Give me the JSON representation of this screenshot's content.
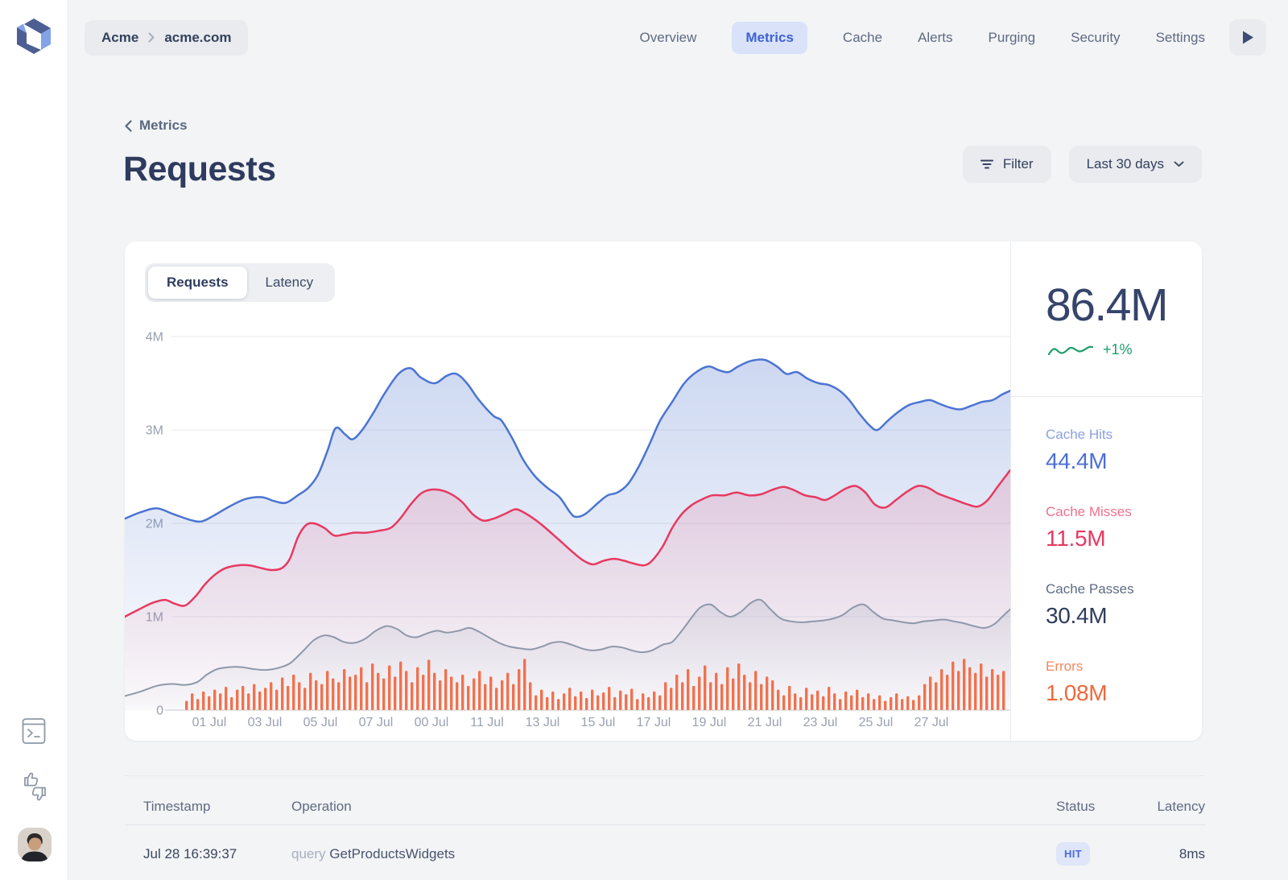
{
  "header": {
    "breadcrumb": {
      "org": "Acme",
      "site": "acme.com"
    },
    "nav_items": [
      "Overview",
      "Metrics",
      "Cache",
      "Alerts",
      "Purging",
      "Security",
      "Settings"
    ],
    "active_nav": "Metrics"
  },
  "page": {
    "back_label": "Metrics",
    "title": "Requests",
    "filter_label": "Filter",
    "range_label": "Last 30 days"
  },
  "tabs": [
    {
      "label": "Requests",
      "active": true
    },
    {
      "label": "Latency",
      "active": false
    }
  ],
  "summary": {
    "total": "86.4M",
    "trend": "+1%",
    "trend_color": "#1d9e68"
  },
  "stats": [
    {
      "label": "Cache Hits",
      "value": "44.4M",
      "label_color": "#8ba0de",
      "value_color": "#4d6fd4"
    },
    {
      "label": "Cache Misses",
      "value": "11.5M",
      "label_color": "#f0718d",
      "value_color": "#e73960"
    },
    {
      "label": "Cache Passes",
      "value": "30.4M",
      "label_color": "#5d6b85",
      "value_color": "#2f3d5e"
    },
    {
      "label": "Errors",
      "value": "1.08M",
      "label_color": "#f2875f",
      "value_color": "#ee6a3d"
    }
  ],
  "chart_data": {
    "type": "area-line+bar",
    "title": "Requests over last 30 days",
    "grid": true,
    "y_unit": "M requests",
    "y_ticks": [
      {
        "label": "4M",
        "value": 4
      },
      {
        "label": "3M",
        "value": 3
      },
      {
        "label": "2M",
        "value": 2
      },
      {
        "label": "1M",
        "value": 1
      },
      {
        "label": "0",
        "value": 0
      }
    ],
    "ylim": [
      0,
      4
    ],
    "x_labels": [
      "01 Jul",
      "03 Jul",
      "05 Jul",
      "07 Jul",
      "00 Jul",
      "11 Jul",
      "13 Jul",
      "15 Jul",
      "17 Jul",
      "19 Jul",
      "21 Jul",
      "23 Jul",
      "25 Jul",
      "27 Jul"
    ],
    "series": [
      {
        "name": "Cache Hits",
        "color": "#4b74d2",
        "fill_from": "rgba(90,126,208,0.30)",
        "fill_to": "rgba(90,126,208,0.02)",
        "points": [
          [
            0,
            2.05
          ],
          [
            20,
            2.12
          ],
          [
            40,
            2.16
          ],
          [
            60,
            2.1
          ],
          [
            80,
            2.04
          ],
          [
            95,
            2.02
          ],
          [
            110,
            2.08
          ],
          [
            130,
            2.18
          ],
          [
            150,
            2.26
          ],
          [
            170,
            2.28
          ],
          [
            185,
            2.24
          ],
          [
            200,
            2.22
          ],
          [
            215,
            2.3
          ],
          [
            228,
            2.38
          ],
          [
            240,
            2.52
          ],
          [
            252,
            2.78
          ],
          [
            262,
            3.02
          ],
          [
            274,
            2.95
          ],
          [
            283,
            2.9
          ],
          [
            295,
            3.0
          ],
          [
            310,
            3.2
          ],
          [
            322,
            3.38
          ],
          [
            340,
            3.6
          ],
          [
            355,
            3.66
          ],
          [
            368,
            3.56
          ],
          [
            385,
            3.5
          ],
          [
            400,
            3.58
          ],
          [
            412,
            3.6
          ],
          [
            425,
            3.5
          ],
          [
            440,
            3.32
          ],
          [
            458,
            3.15
          ],
          [
            468,
            3.1
          ],
          [
            482,
            2.9
          ],
          [
            495,
            2.68
          ],
          [
            510,
            2.5
          ],
          [
            525,
            2.38
          ],
          [
            540,
            2.28
          ],
          [
            553,
            2.12
          ],
          [
            560,
            2.07
          ],
          [
            572,
            2.1
          ],
          [
            588,
            2.22
          ],
          [
            600,
            2.3
          ],
          [
            612,
            2.33
          ],
          [
            625,
            2.42
          ],
          [
            638,
            2.6
          ],
          [
            652,
            2.85
          ],
          [
            665,
            3.1
          ],
          [
            680,
            3.3
          ],
          [
            695,
            3.5
          ],
          [
            710,
            3.62
          ],
          [
            725,
            3.68
          ],
          [
            738,
            3.64
          ],
          [
            750,
            3.62
          ],
          [
            762,
            3.68
          ],
          [
            778,
            3.74
          ],
          [
            795,
            3.75
          ],
          [
            810,
            3.68
          ],
          [
            822,
            3.6
          ],
          [
            835,
            3.62
          ],
          [
            848,
            3.55
          ],
          [
            862,
            3.5
          ],
          [
            875,
            3.48
          ],
          [
            888,
            3.42
          ],
          [
            900,
            3.32
          ],
          [
            912,
            3.18
          ],
          [
            925,
            3.05
          ],
          [
            935,
            3.0
          ],
          [
            948,
            3.1
          ],
          [
            962,
            3.2
          ],
          [
            975,
            3.27
          ],
          [
            988,
            3.3
          ],
          [
            1000,
            3.32
          ],
          [
            1012,
            3.28
          ],
          [
            1025,
            3.24
          ],
          [
            1038,
            3.22
          ],
          [
            1052,
            3.26
          ],
          [
            1065,
            3.3
          ],
          [
            1078,
            3.32
          ],
          [
            1090,
            3.38
          ],
          [
            1100,
            3.42
          ]
        ]
      },
      {
        "name": "Cache Misses",
        "color": "#e73960",
        "fill_from": "rgba(232,57,95,0.16)",
        "fill_to": "rgba(232,57,95,0.01)",
        "points": [
          [
            0,
            1.0
          ],
          [
            18,
            1.08
          ],
          [
            35,
            1.15
          ],
          [
            50,
            1.18
          ],
          [
            62,
            1.14
          ],
          [
            75,
            1.12
          ],
          [
            88,
            1.22
          ],
          [
            100,
            1.35
          ],
          [
            112,
            1.45
          ],
          [
            125,
            1.52
          ],
          [
            140,
            1.55
          ],
          [
            155,
            1.55
          ],
          [
            170,
            1.52
          ],
          [
            182,
            1.5
          ],
          [
            195,
            1.52
          ],
          [
            205,
            1.62
          ],
          [
            215,
            1.85
          ],
          [
            225,
            1.98
          ],
          [
            235,
            2.0
          ],
          [
            248,
            1.95
          ],
          [
            260,
            1.87
          ],
          [
            272,
            1.88
          ],
          [
            285,
            1.9
          ],
          [
            300,
            1.9
          ],
          [
            315,
            1.92
          ],
          [
            330,
            1.95
          ],
          [
            342,
            2.05
          ],
          [
            355,
            2.2
          ],
          [
            368,
            2.32
          ],
          [
            380,
            2.36
          ],
          [
            395,
            2.35
          ],
          [
            408,
            2.3
          ],
          [
            420,
            2.22
          ],
          [
            432,
            2.1
          ],
          [
            445,
            2.03
          ],
          [
            458,
            2.05
          ],
          [
            472,
            2.1
          ],
          [
            485,
            2.15
          ],
          [
            495,
            2.12
          ],
          [
            508,
            2.05
          ],
          [
            520,
            1.97
          ],
          [
            532,
            1.88
          ],
          [
            545,
            1.78
          ],
          [
            558,
            1.68
          ],
          [
            570,
            1.6
          ],
          [
            582,
            1.56
          ],
          [
            595,
            1.6
          ],
          [
            608,
            1.62
          ],
          [
            620,
            1.6
          ],
          [
            632,
            1.57
          ],
          [
            645,
            1.55
          ],
          [
            655,
            1.6
          ],
          [
            668,
            1.75
          ],
          [
            680,
            1.95
          ],
          [
            692,
            2.1
          ],
          [
            705,
            2.2
          ],
          [
            718,
            2.26
          ],
          [
            730,
            2.3
          ],
          [
            745,
            2.3
          ],
          [
            760,
            2.33
          ],
          [
            775,
            2.3
          ],
          [
            790,
            2.31
          ],
          [
            805,
            2.36
          ],
          [
            818,
            2.39
          ],
          [
            830,
            2.36
          ],
          [
            845,
            2.3
          ],
          [
            858,
            2.28
          ],
          [
            870,
            2.25
          ],
          [
            882,
            2.3
          ],
          [
            895,
            2.37
          ],
          [
            908,
            2.4
          ],
          [
            920,
            2.33
          ],
          [
            932,
            2.2
          ],
          [
            945,
            2.17
          ],
          [
            958,
            2.25
          ],
          [
            972,
            2.34
          ],
          [
            985,
            2.4
          ],
          [
            998,
            2.38
          ],
          [
            1010,
            2.32
          ],
          [
            1022,
            2.28
          ],
          [
            1035,
            2.24
          ],
          [
            1048,
            2.2
          ],
          [
            1060,
            2.18
          ],
          [
            1072,
            2.25
          ],
          [
            1085,
            2.4
          ],
          [
            1100,
            2.57
          ]
        ]
      },
      {
        "name": "Cache Passes",
        "color": "#8e98aa",
        "fill_from": "rgba(142,153,173,0.18)",
        "fill_to": "rgba(142,153,173,0.02)",
        "points": [
          [
            0,
            0.15
          ],
          [
            20,
            0.2
          ],
          [
            40,
            0.26
          ],
          [
            58,
            0.28
          ],
          [
            75,
            0.27
          ],
          [
            90,
            0.3
          ],
          [
            102,
            0.38
          ],
          [
            115,
            0.44
          ],
          [
            130,
            0.46
          ],
          [
            145,
            0.46
          ],
          [
            160,
            0.44
          ],
          [
            175,
            0.43
          ],
          [
            190,
            0.45
          ],
          [
            205,
            0.5
          ],
          [
            220,
            0.62
          ],
          [
            235,
            0.75
          ],
          [
            248,
            0.8
          ],
          [
            260,
            0.78
          ],
          [
            272,
            0.73
          ],
          [
            285,
            0.72
          ],
          [
            298,
            0.76
          ],
          [
            312,
            0.85
          ],
          [
            325,
            0.9
          ],
          [
            338,
            0.87
          ],
          [
            350,
            0.8
          ],
          [
            362,
            0.78
          ],
          [
            375,
            0.82
          ],
          [
            388,
            0.85
          ],
          [
            400,
            0.83
          ],
          [
            415,
            0.85
          ],
          [
            428,
            0.88
          ],
          [
            440,
            0.84
          ],
          [
            452,
            0.78
          ],
          [
            465,
            0.72
          ],
          [
            478,
            0.68
          ],
          [
            492,
            0.66
          ],
          [
            505,
            0.65
          ],
          [
            518,
            0.68
          ],
          [
            530,
            0.72
          ],
          [
            542,
            0.73
          ],
          [
            555,
            0.7
          ],
          [
            568,
            0.66
          ],
          [
            580,
            0.64
          ],
          [
            592,
            0.65
          ],
          [
            605,
            0.68
          ],
          [
            618,
            0.67
          ],
          [
            630,
            0.64
          ],
          [
            642,
            0.62
          ],
          [
            655,
            0.64
          ],
          [
            668,
            0.7
          ],
          [
            680,
            0.73
          ],
          [
            692,
            0.85
          ],
          [
            705,
            1.0
          ],
          [
            715,
            1.1
          ],
          [
            728,
            1.13
          ],
          [
            740,
            1.05
          ],
          [
            752,
            1.0
          ],
          [
            765,
            1.05
          ],
          [
            778,
            1.15
          ],
          [
            790,
            1.18
          ],
          [
            802,
            1.08
          ],
          [
            815,
            0.98
          ],
          [
            828,
            0.95
          ],
          [
            842,
            0.94
          ],
          [
            855,
            0.95
          ],
          [
            868,
            0.96
          ],
          [
            880,
            0.98
          ],
          [
            892,
            1.02
          ],
          [
            905,
            1.1
          ],
          [
            918,
            1.13
          ],
          [
            930,
            1.05
          ],
          [
            942,
            0.98
          ],
          [
            955,
            0.96
          ],
          [
            968,
            0.94
          ],
          [
            980,
            0.93
          ],
          [
            992,
            0.95
          ],
          [
            1005,
            0.96
          ],
          [
            1018,
            0.97
          ],
          [
            1030,
            0.95
          ],
          [
            1042,
            0.93
          ],
          [
            1055,
            0.9
          ],
          [
            1068,
            0.88
          ],
          [
            1080,
            0.92
          ],
          [
            1090,
            1.0
          ],
          [
            1100,
            1.08
          ]
        ]
      }
    ],
    "bars": {
      "name": "Errors",
      "color": "#f0724e",
      "start_x": 75,
      "step": 7,
      "width": 3.4,
      "heights_m": [
        0.1,
        0.18,
        0.12,
        0.2,
        0.15,
        0.22,
        0.18,
        0.25,
        0.14,
        0.22,
        0.26,
        0.18,
        0.28,
        0.2,
        0.24,
        0.3,
        0.22,
        0.35,
        0.26,
        0.38,
        0.3,
        0.24,
        0.4,
        0.32,
        0.28,
        0.42,
        0.34,
        0.3,
        0.44,
        0.36,
        0.38,
        0.46,
        0.3,
        0.5,
        0.4,
        0.34,
        0.48,
        0.36,
        0.52,
        0.42,
        0.3,
        0.46,
        0.38,
        0.54,
        0.4,
        0.32,
        0.44,
        0.36,
        0.3,
        0.38,
        0.26,
        0.34,
        0.42,
        0.28,
        0.36,
        0.24,
        0.32,
        0.4,
        0.28,
        0.44,
        0.55,
        0.3,
        0.16,
        0.22,
        0.14,
        0.2,
        0.12,
        0.18,
        0.24,
        0.15,
        0.2,
        0.13,
        0.22,
        0.16,
        0.19,
        0.25,
        0.14,
        0.21,
        0.17,
        0.23,
        0.12,
        0.18,
        0.14,
        0.2,
        0.16,
        0.3,
        0.24,
        0.38,
        0.3,
        0.44,
        0.26,
        0.36,
        0.48,
        0.3,
        0.4,
        0.28,
        0.46,
        0.34,
        0.5,
        0.38,
        0.3,
        0.42,
        0.28,
        0.36,
        0.32,
        0.22,
        0.16,
        0.26,
        0.18,
        0.14,
        0.24,
        0.17,
        0.21,
        0.15,
        0.25,
        0.18,
        0.12,
        0.2,
        0.16,
        0.22,
        0.14,
        0.18,
        0.12,
        0.16,
        0.1,
        0.14,
        0.18,
        0.12,
        0.15,
        0.11,
        0.16,
        0.28,
        0.36,
        0.3,
        0.44,
        0.38,
        0.52,
        0.42,
        0.55,
        0.46,
        0.4,
        0.5,
        0.36,
        0.44,
        0.38,
        0.42
      ]
    }
  },
  "table": {
    "headers": [
      "Timestamp",
      "Operation",
      "Status",
      "Latency"
    ],
    "rows": [
      {
        "timestamp": "Jul 28 16:39:37",
        "op_type": "query",
        "op_name": "GetProductsWidgets",
        "status": "HIT",
        "latency": "8ms"
      }
    ]
  }
}
